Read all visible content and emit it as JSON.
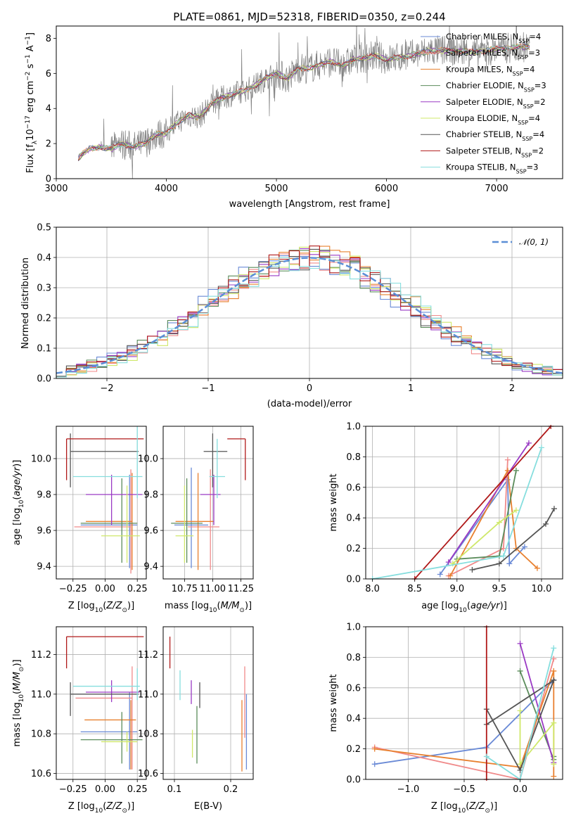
{
  "figure": {
    "title": "PLATE=0861, MJD=52318, FIBERID=0350, z=0.244"
  },
  "colors": {
    "Chabrier MILES": "#6a8ad6",
    "Salpeter MILES": "#f08a8a",
    "Kroupa MILES": "#e8802f",
    "Chabrier ELODIE": "#5b8c5b",
    "Salpeter ELODIE": "#9a3ac4",
    "Kroupa ELODIE": "#cfe86a",
    "Chabrier STELIB": "#555555",
    "Salpeter STELIB": "#b01a1a",
    "Kroupa STELIB": "#86dede",
    "gaussian": "#5b8ed6",
    "grid": "#b0b0b0",
    "data": "#808080"
  },
  "chart_data": [
    {
      "panel": "spectrum",
      "type": "line",
      "title": "PLATE=0861, MJD=52318, FIBERID=0350, z=0.244",
      "xlabel": "wavelength [Angstrom, rest frame]",
      "ylabel": "Flux [f_λ 10^-17 erg cm^-2 s^-1 A^-1]",
      "xlim": [
        3000,
        7600
      ],
      "ylim": [
        0,
        8.7
      ],
      "xticks": [
        3000,
        4000,
        5000,
        6000,
        7000
      ],
      "yticks": [
        0,
        2,
        4,
        6,
        8
      ],
      "legend": "top-right",
      "data_curve": {
        "x": [
          3200,
          3300,
          3400,
          3500,
          3600,
          3700,
          3800,
          3900,
          4000,
          4100,
          4200,
          4300,
          4400,
          4500,
          4600,
          4700,
          4800,
          4900,
          5000,
          5100,
          5200,
          5300,
          5400,
          5500,
          5600,
          5700,
          5800,
          5900,
          6000,
          6200,
          6400,
          6600,
          6800,
          7000,
          7200,
          7300
        ],
        "y": [
          1.2,
          1.7,
          1.8,
          1.7,
          2.0,
          1.8,
          2.0,
          2.5,
          2.6,
          3.2,
          3.6,
          3.5,
          4.2,
          4.6,
          4.8,
          5.0,
          5.3,
          5.7,
          6.0,
          5.7,
          6.3,
          6.3,
          6.5,
          6.7,
          6.4,
          6.8,
          6.9,
          7.0,
          6.8,
          7.0,
          7.3,
          7.3,
          7.2,
          7.4,
          7.5,
          7.5
        ]
      },
      "legend_entries": [
        {
          "label": "Chabrier MILES, N",
          "sub": "SSP",
          "suffix": "=4",
          "key": "Chabrier MILES"
        },
        {
          "label": "Salpeter MILES, N",
          "sub": "SSP",
          "suffix": "=3",
          "key": "Salpeter MILES"
        },
        {
          "label": "Kroupa MILES, N",
          "sub": "SSP",
          "suffix": "=4",
          "key": "Kroupa MILES"
        },
        {
          "label": "Chabrier ELODIE, N",
          "sub": "SSP",
          "suffix": "=3",
          "key": "Chabrier ELODIE"
        },
        {
          "label": "Salpeter ELODIE, N",
          "sub": "SSP",
          "suffix": "=2",
          "key": "Salpeter ELODIE"
        },
        {
          "label": "Kroupa ELODIE, N",
          "sub": "SSP",
          "suffix": "=4",
          "key": "Kroupa ELODIE"
        },
        {
          "label": "Chabrier STELIB, N",
          "sub": "SSP",
          "suffix": "=4",
          "key": "Chabrier STELIB"
        },
        {
          "label": "Salpeter STELIB, N",
          "sub": "SSP",
          "suffix": "=2",
          "key": "Salpeter STELIB"
        },
        {
          "label": "Kroupa STELIB, N",
          "sub": "SSP",
          "suffix": "=3",
          "key": "Kroupa STELIB"
        }
      ]
    },
    {
      "panel": "residuals",
      "type": "line",
      "xlabel": "(data-model)/error",
      "ylabel": "Normed distribution",
      "xlim": [
        -2.5,
        2.5
      ],
      "ylim": [
        0,
        0.5
      ],
      "xticks": [
        -2,
        -1,
        0,
        1,
        2
      ],
      "yticks": [
        0.0,
        0.1,
        0.2,
        0.3,
        0.4,
        0.5
      ],
      "legend": "top-right",
      "legend_label": "𝒩(0, 1)",
      "hist_bins": 50,
      "grid": true
    },
    {
      "panel": "age_vs_Z",
      "type": "scatter",
      "xlabel": "Z [log10(Z/Z⊙)]",
      "ylabel": "age [log10(age/yr)]",
      "xlim": [
        -0.38,
        0.32
      ],
      "ylim": [
        9.33,
        10.18
      ],
      "xticks": [
        -0.25,
        0.0,
        0.25
      ],
      "yticks": [
        9.4,
        9.6,
        9.8,
        10.0
      ],
      "points": [
        {
          "key": "Chabrier MILES",
          "x": 0.19,
          "y": 9.63,
          "xerr": [
            0.38,
            0.06
          ],
          "yerr": [
            0.24,
            0.28
          ]
        },
        {
          "key": "Salpeter MILES",
          "x": 0.2,
          "y": 9.62,
          "xerr": [
            0.44,
            0.0
          ],
          "yerr": [
            0.26,
            0.32
          ]
        },
        {
          "key": "Kroupa MILES",
          "x": 0.21,
          "y": 9.65,
          "xerr": [
            0.36,
            0.0
          ],
          "yerr": [
            0.27,
            0.27
          ]
        },
        {
          "key": "Chabrier ELODIE",
          "x": 0.13,
          "y": 9.64,
          "xerr": [
            0.32,
            0.12
          ],
          "yerr": [
            0.22,
            0.25
          ]
        },
        {
          "key": "Salpeter ELODIE",
          "x": 0.05,
          "y": 9.8,
          "xerr": [
            0.2,
            0.24
          ],
          "yerr": [
            0.17,
            0.11
          ]
        },
        {
          "key": "Kroupa ELODIE",
          "x": 0.17,
          "y": 9.57,
          "xerr": [
            0.2,
            0.1
          ],
          "yerr": [
            0.15,
            0.28
          ]
        },
        {
          "key": "Chabrier STELIB",
          "x": -0.27,
          "y": 10.04,
          "xerr": [
            0.0,
            0.53
          ],
          "yerr": [
            0.2,
            0.1
          ]
        },
        {
          "key": "Salpeter STELIB",
          "x": -0.3,
          "y": 10.11,
          "xerr": [
            0.0,
            0.6
          ],
          "yerr": [
            0.23,
            0.0
          ]
        },
        {
          "key": "Kroupa STELIB",
          "x": 0.25,
          "y": 9.9,
          "xerr": [
            0.5,
            0.04
          ],
          "yerr": [
            0.12,
            0.3
          ]
        }
      ]
    },
    {
      "panel": "age_vs_mass",
      "type": "scatter",
      "xlabel": "mass [log10(M/M⊙)]",
      "xlim": [
        10.56,
        11.36
      ],
      "ylim": [
        9.33,
        10.18
      ],
      "xticks": [
        10.75,
        11.0,
        11.25
      ],
      "yticks": [
        9.4,
        9.6,
        9.8,
        10.0
      ],
      "points": [
        {
          "key": "Chabrier MILES",
          "x": 10.81,
          "y": 9.63,
          "xerr": [
            0.15,
            0.15
          ],
          "yerr": [
            0.24,
            0.32
          ]
        },
        {
          "key": "Salpeter MILES",
          "x": 10.98,
          "y": 9.62,
          "xerr": [
            0.2,
            0.08
          ],
          "yerr": [
            0.24,
            0.32
          ]
        },
        {
          "key": "Kroupa MILES",
          "x": 10.87,
          "y": 9.65,
          "xerr": [
            0.2,
            0.14
          ],
          "yerr": [
            0.27,
            0.27
          ]
        },
        {
          "key": "Chabrier ELODIE",
          "x": 10.77,
          "y": 9.64,
          "xerr": [
            0.14,
            0.14
          ],
          "yerr": [
            0.22,
            0.25
          ]
        },
        {
          "key": "Salpeter ELODIE",
          "x": 11.01,
          "y": 9.8,
          "xerr": [
            0.12,
            0.06
          ],
          "yerr": [
            0.17,
            0.11
          ]
        },
        {
          "key": "Kroupa ELODIE",
          "x": 10.75,
          "y": 9.57,
          "xerr": [
            0.08,
            0.08
          ],
          "yerr": [
            0.15,
            0.28
          ]
        },
        {
          "key": "Chabrier STELIB",
          "x": 11.0,
          "y": 10.04,
          "xerr": [
            0.08,
            0.13
          ],
          "yerr": [
            0.2,
            0.1
          ]
        },
        {
          "key": "Salpeter STELIB",
          "x": 11.29,
          "y": 10.11,
          "xerr": [
            0.16,
            0.0
          ],
          "yerr": [
            0.23,
            0.0
          ]
        },
        {
          "key": "Kroupa STELIB",
          "x": 11.04,
          "y": 9.9,
          "xerr": [
            0.07,
            0.07
          ],
          "yerr": [
            0.12,
            0.21
          ]
        }
      ]
    },
    {
      "panel": "massweight_vs_age",
      "type": "line",
      "xlabel": "age [log10(age/yr)]",
      "ylabel": "mass weight",
      "xlim": [
        7.92,
        10.25
      ],
      "ylim": [
        0,
        1
      ],
      "xticks": [
        8.0,
        8.5,
        9.0,
        9.5,
        10.0
      ],
      "yticks": [
        0.0,
        0.2,
        0.4,
        0.6,
        0.8,
        1.0
      ],
      "series": [
        {
          "key": "Chabrier MILES",
          "x": [
            8.8,
            9.6,
            9.62,
            9.8
          ],
          "y": [
            0.03,
            0.65,
            0.1,
            0.21
          ]
        },
        {
          "key": "Salpeter MILES",
          "x": [
            8.9,
            9.55,
            9.6
          ],
          "y": [
            0.02,
            0.2,
            0.78
          ]
        },
        {
          "key": "Kroupa MILES",
          "x": [
            8.92,
            9.6,
            9.7,
            9.95
          ],
          "y": [
            0.02,
            0.71,
            0.2,
            0.07
          ]
        },
        {
          "key": "Chabrier ELODIE",
          "x": [
            9.0,
            9.5,
            9.7
          ],
          "y": [
            0.13,
            0.15,
            0.71
          ]
        },
        {
          "key": "Salpeter ELODIE",
          "x": [
            8.9,
            9.85
          ],
          "y": [
            0.11,
            0.89
          ]
        },
        {
          "key": "Kroupa ELODIE",
          "x": [
            8.95,
            9.5,
            9.7
          ],
          "y": [
            0.1,
            0.37,
            0.45
          ]
        },
        {
          "key": "Chabrier STELIB",
          "x": [
            9.18,
            9.5,
            10.05,
            10.15
          ],
          "y": [
            0.06,
            0.1,
            0.36,
            0.46
          ]
        },
        {
          "key": "Salpeter STELIB",
          "x": [
            8.5,
            10.11
          ],
          "y": [
            0.0,
            1.0
          ]
        },
        {
          "key": "Kroupa STELIB",
          "x": [
            8.0,
            9.55,
            10.0
          ],
          "y": [
            0.0,
            0.15,
            0.86
          ]
        }
      ]
    },
    {
      "panel": "mass_vs_Z",
      "type": "scatter",
      "xlabel": "Z [log10(Z/Z⊙)]",
      "ylabel": "mass [log10(M/M⊙)]",
      "xlim": [
        -0.38,
        0.32
      ],
      "ylim": [
        10.57,
        11.34
      ],
      "xticks": [
        -0.25,
        0.0,
        0.25
      ],
      "yticks": [
        10.6,
        10.8,
        11.0,
        11.2
      ],
      "points": [
        {
          "key": "Chabrier MILES",
          "x": 0.19,
          "y": 10.81,
          "xerr": [
            0.38,
            0.06
          ],
          "yerr": [
            0.19,
            0.2
          ]
        },
        {
          "key": "Salpeter MILES",
          "x": 0.21,
          "y": 10.98,
          "xerr": [
            0.44,
            0.0
          ],
          "yerr": [
            0.36,
            0.16
          ]
        },
        {
          "key": "Kroupa MILES",
          "x": 0.2,
          "y": 10.87,
          "xerr": [
            0.36,
            0.04
          ],
          "yerr": [
            0.25,
            0.1
          ]
        },
        {
          "key": "Chabrier ELODIE",
          "x": 0.13,
          "y": 10.77,
          "xerr": [
            0.32,
            0.16
          ],
          "yerr": [
            0.12,
            0.14
          ]
        },
        {
          "key": "Salpeter ELODIE",
          "x": 0.05,
          "y": 11.01,
          "xerr": [
            0.2,
            0.22
          ],
          "yerr": [
            0.05,
            0.06
          ]
        },
        {
          "key": "Kroupa ELODIE",
          "x": 0.17,
          "y": 10.76,
          "xerr": [
            0.2,
            0.08
          ],
          "yerr": [
            0.05,
            0.05
          ]
        },
        {
          "key": "Chabrier STELIB",
          "x": -0.27,
          "y": 11.0,
          "xerr": [
            0.0,
            0.53
          ],
          "yerr": [
            0.11,
            0.06
          ]
        },
        {
          "key": "Salpeter STELIB",
          "x": -0.3,
          "y": 11.29,
          "xerr": [
            0.0,
            0.6
          ],
          "yerr": [
            0.16,
            0.0
          ]
        },
        {
          "key": "Kroupa STELIB",
          "x": 0.25,
          "y": 11.04,
          "xerr": [
            0.5,
            0.02
          ],
          "yerr": [
            0.07,
            0.09
          ]
        }
      ]
    },
    {
      "panel": "mass_vs_EBV",
      "type": "scatter",
      "xlabel": "E(B-V)",
      "xlim": [
        0.08,
        0.24
      ],
      "ylim": [
        10.57,
        11.34
      ],
      "xticks": [
        0.1,
        0.2
      ],
      "yticks": [
        10.6,
        10.8,
        11.0,
        11.2
      ],
      "points": [
        {
          "key": "Chabrier MILES",
          "x": 0.228,
          "y": 10.81,
          "yerr": [
            0.19,
            0.19
          ]
        },
        {
          "key": "Salpeter MILES",
          "x": 0.225,
          "y": 10.98,
          "yerr": [
            0.2,
            0.16
          ]
        },
        {
          "key": "Kroupa MILES",
          "x": 0.22,
          "y": 10.87,
          "yerr": [
            0.26,
            0.1
          ]
        },
        {
          "key": "Chabrier ELODIE",
          "x": 0.14,
          "y": 10.8,
          "yerr": [
            0.15,
            0.14
          ]
        },
        {
          "key": "Salpeter ELODIE",
          "x": 0.13,
          "y": 11.01,
          "yerr": [
            0.06,
            0.06
          ]
        },
        {
          "key": "Kroupa ELODIE",
          "x": 0.132,
          "y": 10.76,
          "yerr": [
            0.08,
            0.06
          ]
        },
        {
          "key": "Chabrier STELIB",
          "x": 0.145,
          "y": 11.0,
          "yerr": [
            0.07,
            0.06
          ]
        },
        {
          "key": "Salpeter STELIB",
          "x": 0.092,
          "y": 11.21,
          "yerr": [
            0.08,
            0.08
          ]
        },
        {
          "key": "Kroupa STELIB",
          "x": 0.11,
          "y": 11.04,
          "yerr": [
            0.07,
            0.08
          ]
        }
      ]
    },
    {
      "panel": "massweight_vs_Z",
      "type": "line",
      "xlabel": "Z [log10(Z/Z⊙)]",
      "ylabel": "mass weight",
      "xlim": [
        -1.38,
        0.38
      ],
      "ylim": [
        0,
        1
      ],
      "xticks": [
        -1.0,
        -0.5,
        0.0
      ],
      "yticks": [
        0.0,
        0.2,
        0.4,
        0.6,
        0.8,
        1.0
      ],
      "series": [
        {
          "key": "Chabrier MILES",
          "x": [
            -1.3,
            -0.3,
            0.3
          ],
          "y": [
            0.1,
            0.21,
            0.65
          ]
        },
        {
          "key": "Salpeter MILES",
          "x": [
            -1.3,
            0.0,
            0.3
          ],
          "y": [
            0.21,
            0.0,
            0.79
          ]
        },
        {
          "key": "Kroupa MILES",
          "x": [
            -1.3,
            0.0,
            0.3,
            0.3
          ],
          "y": [
            0.2,
            0.08,
            0.71,
            0.02
          ]
        },
        {
          "key": "Chabrier ELODIE",
          "x": [
            0.0,
            0.3,
            0.3
          ],
          "y": [
            0.71,
            0.13,
            0.15
          ]
        },
        {
          "key": "Salpeter ELODIE",
          "x": [
            0.0,
            0.3
          ],
          "y": [
            0.89,
            0.11
          ]
        },
        {
          "key": "Kroupa ELODIE",
          "x": [
            0.0,
            0.0,
            0.3,
            0.3
          ],
          "y": [
            0.45,
            0.1,
            0.37,
            0.1
          ]
        },
        {
          "key": "Chabrier STELIB",
          "x": [
            -0.3,
            0.0,
            0.3,
            -0.3
          ],
          "y": [
            0.46,
            0.06,
            0.65,
            0.36
          ]
        },
        {
          "key": "Salpeter STELIB",
          "x": [
            -0.3,
            -0.3
          ],
          "y": [
            0.0,
            1.0
          ]
        },
        {
          "key": "Kroupa STELIB",
          "x": [
            -0.3,
            0.0,
            0.3
          ],
          "y": [
            0.15,
            0.0,
            0.86
          ]
        }
      ]
    }
  ]
}
